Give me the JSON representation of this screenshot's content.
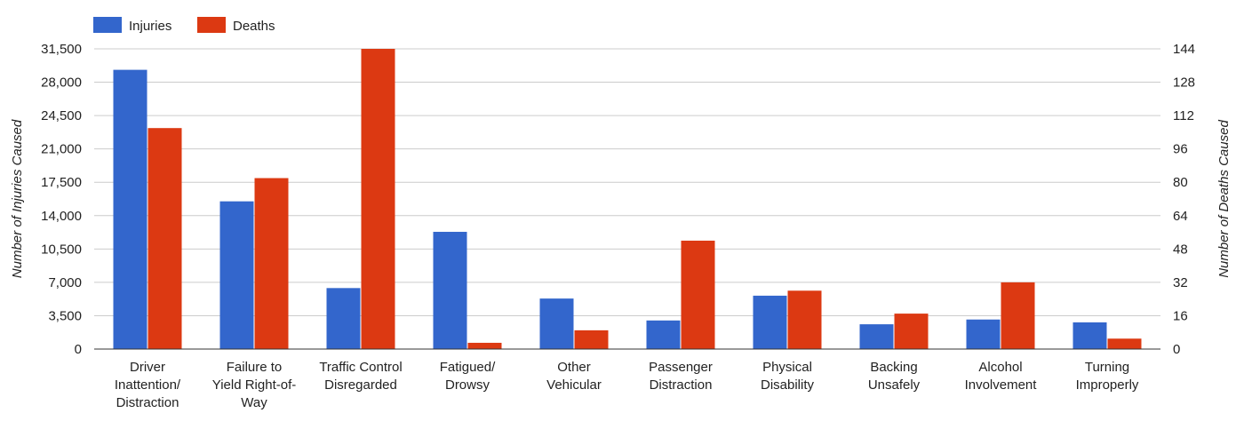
{
  "chart_data": {
    "type": "bar",
    "categories": [
      [
        "Driver",
        "Inattention/",
        "Distraction"
      ],
      [
        "Failure to",
        "Yield Right-of-",
        "Way"
      ],
      [
        "Traffic Control",
        "Disregarded"
      ],
      [
        "Fatigued/",
        "Drowsy"
      ],
      [
        "Other",
        "Vehicular"
      ],
      [
        "Passenger",
        "Distraction"
      ],
      [
        "Physical",
        "Disability"
      ],
      [
        "Backing",
        "Unsafely"
      ],
      [
        "Alcohol",
        "Involvement"
      ],
      [
        "Turning",
        "Improperly"
      ]
    ],
    "series": [
      {
        "name": "Injuries",
        "axis": "left",
        "color": "#3366cc",
        "values": [
          29300,
          15500,
          6400,
          12300,
          5300,
          3000,
          5600,
          2600,
          3100,
          2800
        ]
      },
      {
        "name": "Deaths",
        "axis": "right",
        "color": "#dc3912",
        "values": [
          106,
          82,
          144,
          3,
          9,
          52,
          28,
          17,
          32,
          5
        ]
      }
    ],
    "ylabel_left": "Number of Injuries Caused",
    "ylabel_right": "Number of Deaths Caused",
    "ylim_left": [
      0,
      31500
    ],
    "ylim_right": [
      0,
      144
    ],
    "yticks_left": [
      "0",
      "3,500",
      "7,000",
      "10,500",
      "14,000",
      "17,500",
      "21,000",
      "24,500",
      "28,000",
      "31,500"
    ],
    "yticks_right": [
      "0",
      "16",
      "32",
      "48",
      "64",
      "80",
      "96",
      "112",
      "128",
      "144"
    ],
    "grid": true,
    "legend_position": "top-left"
  }
}
